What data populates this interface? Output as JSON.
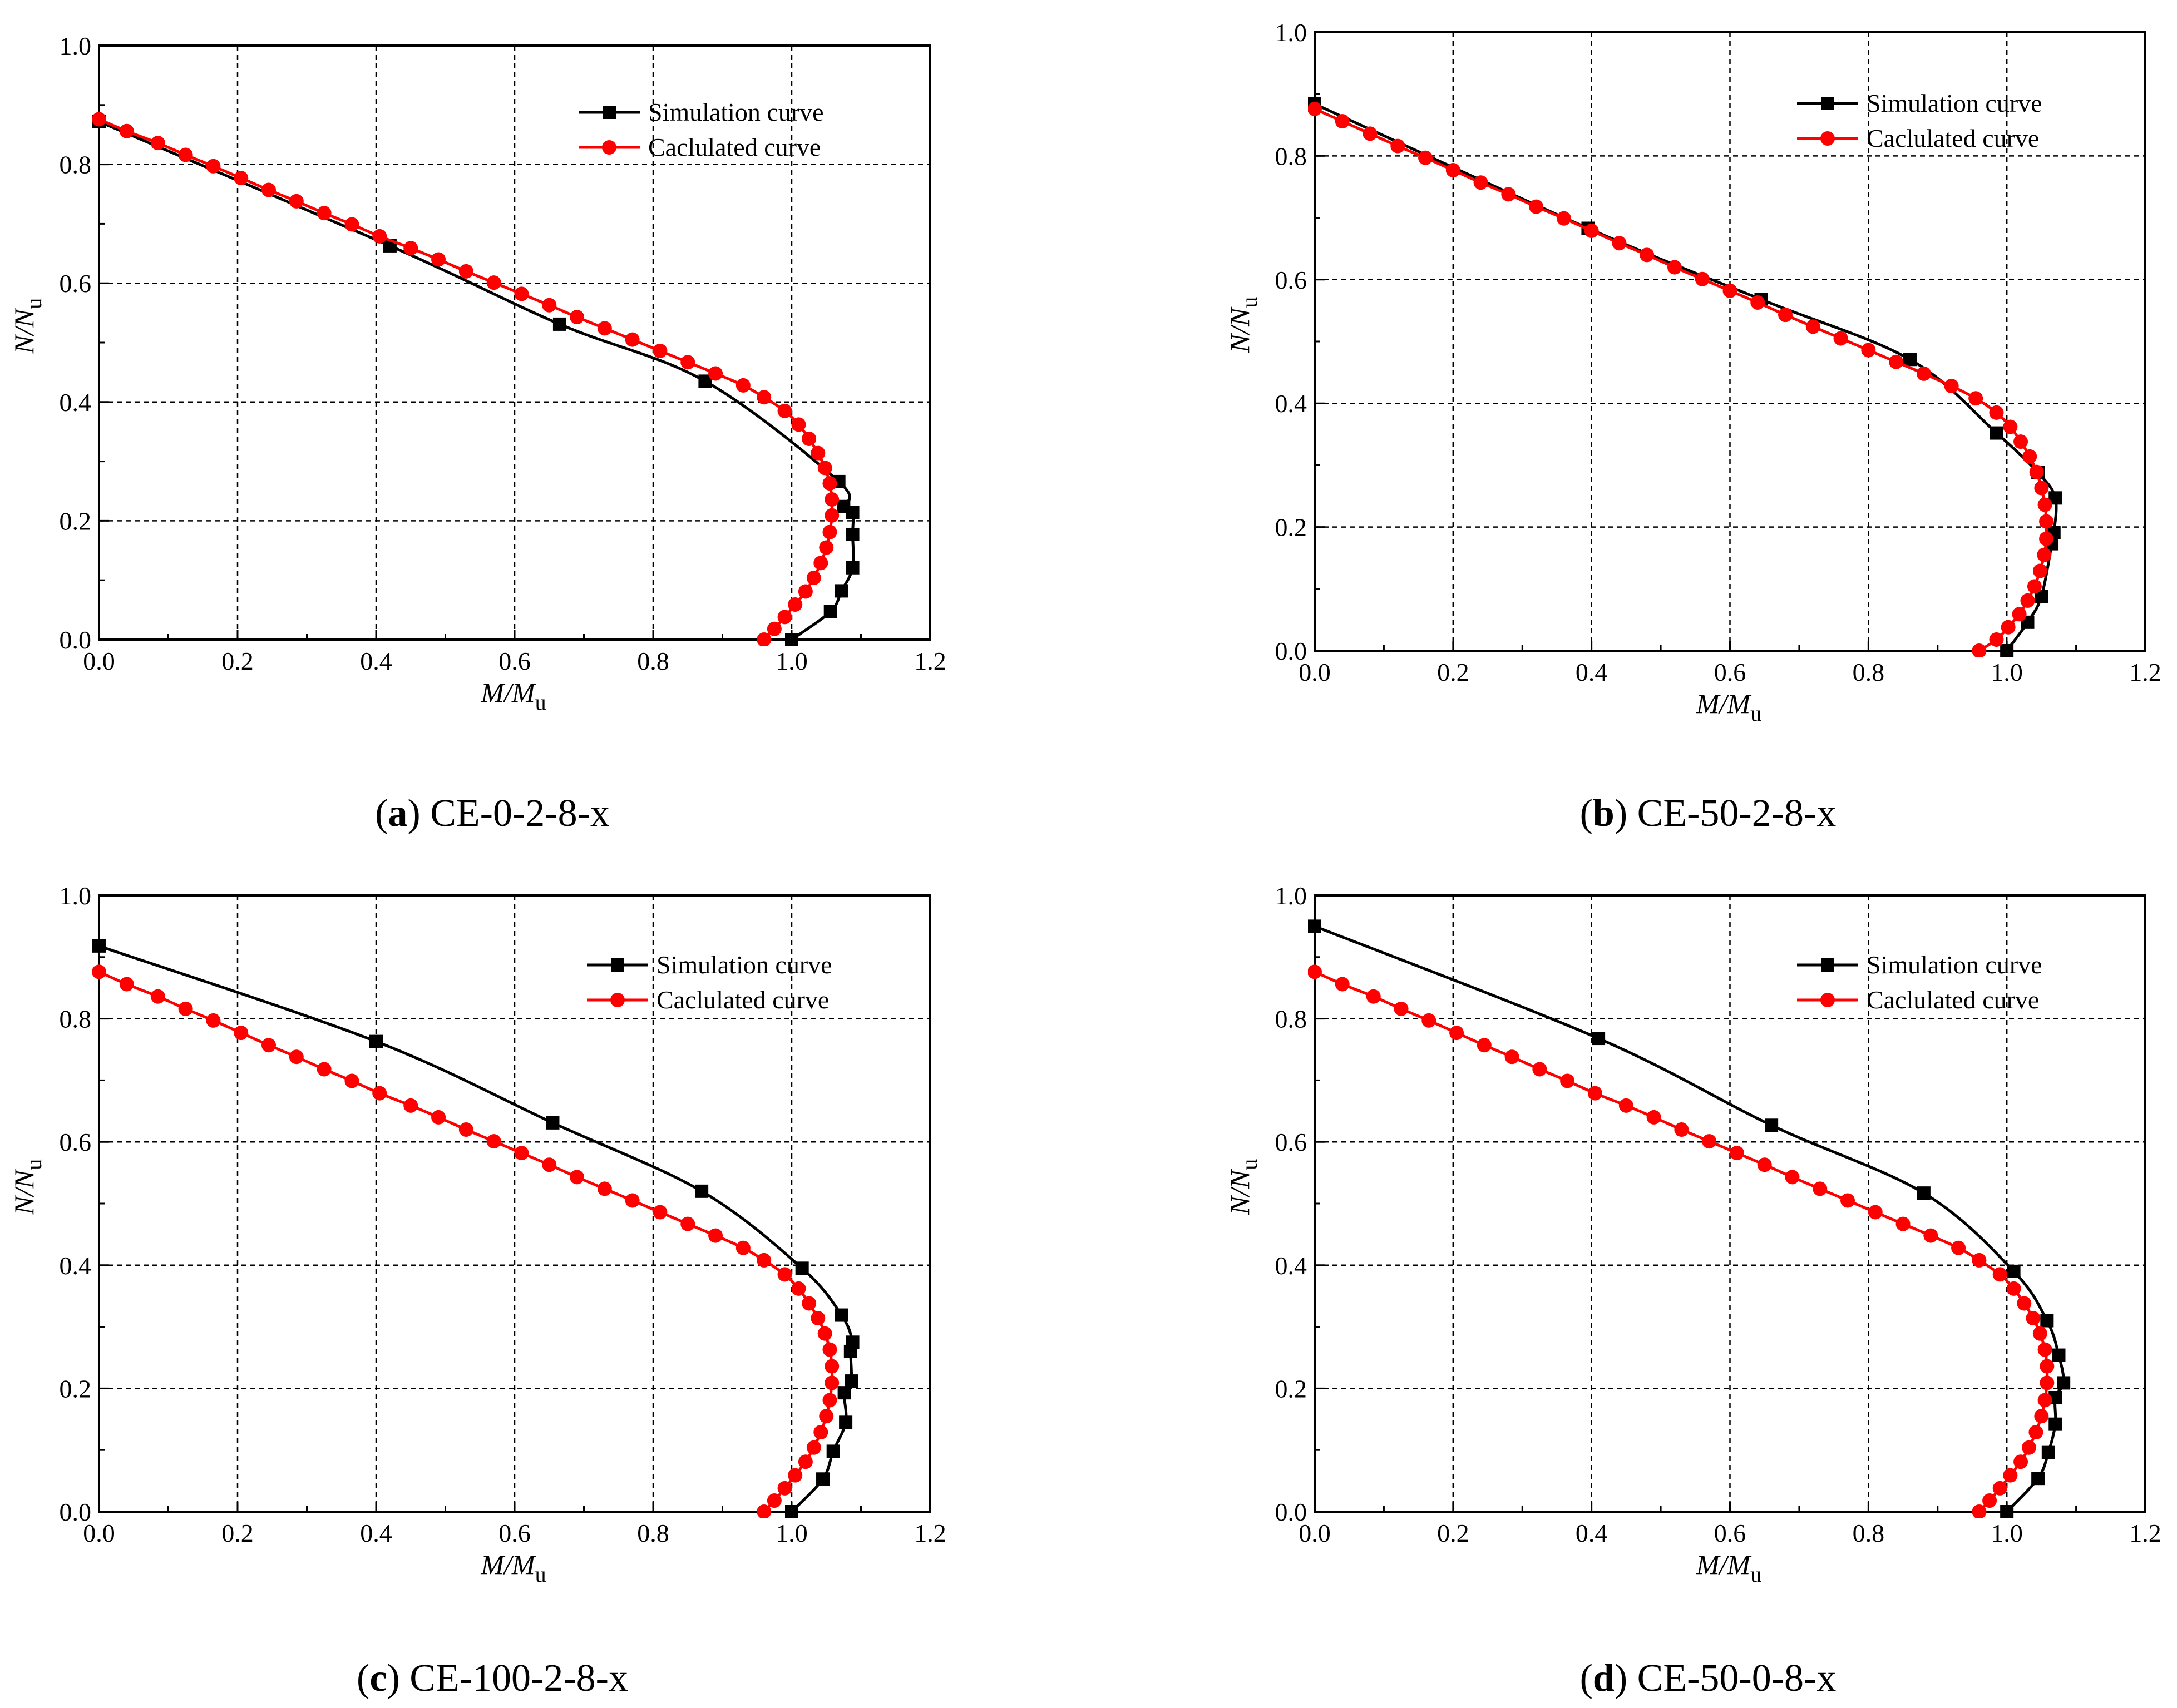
{
  "figure": {
    "colors": {
      "simulation": "#000000",
      "calculated": "#ff0000",
      "grid": "#000000",
      "background": "#ffffff"
    },
    "legend": {
      "simulation_label": "Simulation curve",
      "calculated_label": "Caclulated curve"
    },
    "icons": {
      "simulation_marker": "square-marker-icon",
      "calculated_marker": "circle-marker-icon"
    }
  },
  "chart_data": [
    {
      "type": "line",
      "caption_letter": "a",
      "caption_text": "CE-0-2-8-x",
      "xlabel": "M/Mu",
      "ylabel": "N/Nu",
      "xlim": [
        0.0,
        1.2
      ],
      "ylim": [
        0.0,
        1.0
      ],
      "xticks": [
        "0.0",
        "0.2",
        "0.4",
        "0.6",
        "0.8",
        "1.0",
        "1.2"
      ],
      "yticks": [
        "0.0",
        "0.2",
        "0.4",
        "0.6",
        "0.8",
        "1.0"
      ],
      "grid": true,
      "legend_position": "top-right",
      "series": [
        {
          "name": "Simulation curve",
          "marker": "square",
          "x": [
            0.0,
            0.42,
            0.665,
            0.875,
            1.068,
            1.075,
            1.088,
            1.088,
            1.088,
            1.072,
            1.056,
            1.0
          ],
          "y": [
            0.872,
            0.663,
            0.531,
            0.435,
            0.266,
            0.224,
            0.214,
            0.177,
            0.121,
            0.082,
            0.047,
            0.0
          ]
        },
        {
          "name": "Caclulated curve",
          "marker": "circle",
          "x": [
            0.0,
            0.04,
            0.085,
            0.125,
            0.165,
            0.205,
            0.245,
            0.285,
            0.325,
            0.365,
            0.405,
            0.45,
            0.49,
            0.53,
            0.57,
            0.61,
            0.65,
            0.69,
            0.73,
            0.77,
            0.81,
            0.85,
            0.89,
            0.93,
            0.96,
            0.99,
            1.01,
            1.025,
            1.038,
            1.048,
            1.055,
            1.058,
            1.058,
            1.055,
            1.05,
            1.042,
            1.032,
            1.02,
            1.005,
            0.99,
            0.975,
            0.96
          ],
          "y": [
            0.876,
            0.856,
            0.836,
            0.816,
            0.797,
            0.777,
            0.757,
            0.738,
            0.718,
            0.699,
            0.679,
            0.659,
            0.64,
            0.62,
            0.601,
            0.582,
            0.563,
            0.543,
            0.524,
            0.505,
            0.486,
            0.467,
            0.448,
            0.428,
            0.408,
            0.385,
            0.362,
            0.338,
            0.314,
            0.289,
            0.263,
            0.236,
            0.209,
            0.181,
            0.155,
            0.129,
            0.104,
            0.081,
            0.059,
            0.038,
            0.018,
            0.0
          ]
        }
      ]
    },
    {
      "type": "line",
      "caption_letter": "b",
      "caption_text": "CE-50-2-8-x",
      "xlabel": "M/Mu",
      "ylabel": "N/Nu",
      "xlim": [
        0.0,
        1.2
      ],
      "ylim": [
        0.0,
        1.0
      ],
      "xticks": [
        "0.0",
        "0.2",
        "0.4",
        "0.6",
        "0.8",
        "1.0",
        "1.2"
      ],
      "yticks": [
        "0.0",
        "0.2",
        "0.4",
        "0.6",
        "0.8",
        "1.0"
      ],
      "grid": true,
      "legend_position": "top-right",
      "series": [
        {
          "name": "Simulation curve",
          "marker": "square",
          "x": [
            0.0,
            0.395,
            0.645,
            0.86,
            0.985,
            1.045,
            1.07,
            1.068,
            1.065,
            1.05,
            1.03,
            1.0
          ],
          "y": [
            0.884,
            0.683,
            0.568,
            0.471,
            0.352,
            0.288,
            0.247,
            0.191,
            0.173,
            0.088,
            0.046,
            0.0
          ]
        },
        {
          "name": "Caclulated curve",
          "marker": "circle",
          "x": [
            0.0,
            0.04,
            0.08,
            0.12,
            0.16,
            0.2,
            0.24,
            0.28,
            0.32,
            0.36,
            0.4,
            0.44,
            0.48,
            0.52,
            0.56,
            0.6,
            0.64,
            0.68,
            0.72,
            0.76,
            0.8,
            0.84,
            0.88,
            0.92,
            0.955,
            0.985,
            1.005,
            1.02,
            1.033,
            1.043,
            1.05,
            1.055,
            1.057,
            1.057,
            1.054,
            1.048,
            1.04,
            1.03,
            1.018,
            1.002,
            0.985,
            0.96
          ],
          "y": [
            0.876,
            0.856,
            0.836,
            0.816,
            0.797,
            0.777,
            0.757,
            0.738,
            0.718,
            0.699,
            0.679,
            0.659,
            0.64,
            0.62,
            0.601,
            0.582,
            0.563,
            0.543,
            0.524,
            0.505,
            0.486,
            0.467,
            0.448,
            0.428,
            0.408,
            0.385,
            0.362,
            0.338,
            0.314,
            0.289,
            0.263,
            0.236,
            0.209,
            0.181,
            0.155,
            0.129,
            0.104,
            0.081,
            0.059,
            0.038,
            0.018,
            0.0
          ]
        }
      ]
    },
    {
      "type": "line",
      "caption_letter": "c",
      "caption_text": "CE-100-2-8-x",
      "xlabel": "M/Mu",
      "ylabel": "N/Nu",
      "xlim": [
        0.0,
        1.2
      ],
      "ylim": [
        0.0,
        1.0
      ],
      "xticks": [
        "0.0",
        "0.2",
        "0.4",
        "0.6",
        "0.8",
        "1.0",
        "1.2"
      ],
      "yticks": [
        "0.0",
        "0.2",
        "0.4",
        "0.6",
        "0.8",
        "1.0"
      ],
      "grid": true,
      "legend_position": "top-right",
      "series": [
        {
          "name": "Simulation curve",
          "marker": "square",
          "x": [
            0.0,
            0.4,
            0.655,
            0.87,
            1.015,
            1.072,
            1.088,
            1.085,
            1.086,
            1.076,
            1.078,
            1.06,
            1.045,
            1.0
          ],
          "y": [
            0.918,
            0.763,
            0.631,
            0.52,
            0.395,
            0.319,
            0.275,
            0.26,
            0.212,
            0.193,
            0.145,
            0.098,
            0.053,
            0.0
          ]
        },
        {
          "name": "Caclulated curve",
          "marker": "circle",
          "x": [
            0.0,
            0.04,
            0.085,
            0.125,
            0.165,
            0.205,
            0.245,
            0.285,
            0.325,
            0.365,
            0.405,
            0.45,
            0.49,
            0.53,
            0.57,
            0.61,
            0.65,
            0.69,
            0.73,
            0.77,
            0.81,
            0.85,
            0.89,
            0.93,
            0.96,
            0.99,
            1.01,
            1.025,
            1.038,
            1.048,
            1.055,
            1.058,
            1.058,
            1.055,
            1.05,
            1.042,
            1.032,
            1.02,
            1.005,
            0.99,
            0.975,
            0.96
          ],
          "y": [
            0.876,
            0.856,
            0.836,
            0.816,
            0.797,
            0.777,
            0.757,
            0.738,
            0.718,
            0.699,
            0.679,
            0.659,
            0.64,
            0.62,
            0.601,
            0.582,
            0.563,
            0.543,
            0.524,
            0.505,
            0.486,
            0.467,
            0.448,
            0.428,
            0.408,
            0.385,
            0.362,
            0.338,
            0.314,
            0.289,
            0.263,
            0.236,
            0.209,
            0.181,
            0.155,
            0.129,
            0.104,
            0.081,
            0.059,
            0.038,
            0.018,
            0.0
          ]
        }
      ]
    },
    {
      "type": "line",
      "caption_letter": "d",
      "caption_text": "CE-50-0-8-x",
      "xlabel": "M/Mu",
      "ylabel": "N/Nu",
      "xlim": [
        0.0,
        1.2
      ],
      "ylim": [
        0.0,
        1.0
      ],
      "xticks": [
        "0.0",
        "0.2",
        "0.4",
        "0.6",
        "0.8",
        "1.0",
        "1.2"
      ],
      "yticks": [
        "0.0",
        "0.2",
        "0.4",
        "0.6",
        "0.8",
        "1.0"
      ],
      "grid": true,
      "legend_position": "top-right",
      "series": [
        {
          "name": "Simulation curve",
          "marker": "square",
          "x": [
            0.0,
            0.41,
            0.66,
            0.88,
            1.01,
            1.058,
            1.075,
            1.082,
            1.07,
            1.07,
            1.06,
            1.045,
            1.0
          ],
          "y": [
            0.95,
            0.768,
            0.627,
            0.517,
            0.39,
            0.31,
            0.254,
            0.209,
            0.185,
            0.142,
            0.096,
            0.054,
            0.0
          ]
        },
        {
          "name": "Caclulated curve",
          "marker": "circle",
          "x": [
            0.0,
            0.04,
            0.085,
            0.125,
            0.165,
            0.205,
            0.245,
            0.285,
            0.325,
            0.365,
            0.405,
            0.45,
            0.49,
            0.53,
            0.57,
            0.61,
            0.65,
            0.69,
            0.73,
            0.77,
            0.81,
            0.85,
            0.89,
            0.93,
            0.96,
            0.99,
            1.01,
            1.025,
            1.038,
            1.048,
            1.055,
            1.058,
            1.058,
            1.055,
            1.05,
            1.042,
            1.032,
            1.02,
            1.005,
            0.99,
            0.975,
            0.96
          ],
          "y": [
            0.876,
            0.856,
            0.836,
            0.816,
            0.797,
            0.777,
            0.757,
            0.738,
            0.718,
            0.699,
            0.679,
            0.659,
            0.64,
            0.62,
            0.601,
            0.582,
            0.563,
            0.543,
            0.524,
            0.505,
            0.486,
            0.467,
            0.448,
            0.428,
            0.408,
            0.385,
            0.362,
            0.338,
            0.314,
            0.289,
            0.263,
            0.236,
            0.209,
            0.181,
            0.155,
            0.129,
            0.104,
            0.081,
            0.059,
            0.038,
            0.018,
            0.0
          ]
        }
      ]
    }
  ]
}
